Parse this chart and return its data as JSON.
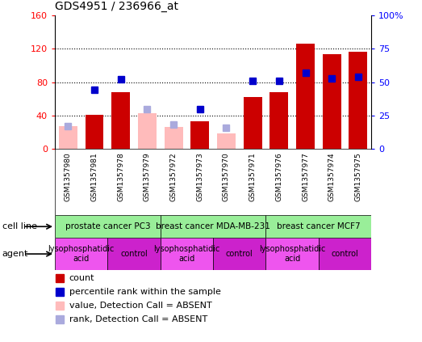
{
  "title": "GDS4951 / 236966_at",
  "samples": [
    "GSM1357980",
    "GSM1357981",
    "GSM1357978",
    "GSM1357979",
    "GSM1357972",
    "GSM1357973",
    "GSM1357970",
    "GSM1357971",
    "GSM1357976",
    "GSM1357977",
    "GSM1357974",
    "GSM1357975"
  ],
  "count_present": [
    null,
    41,
    68,
    null,
    null,
    33,
    null,
    62,
    68,
    126,
    113,
    116
  ],
  "count_absent": [
    27,
    null,
    null,
    43,
    26,
    null,
    18,
    null,
    null,
    null,
    null,
    null
  ],
  "rank_present": [
    null,
    44,
    52,
    null,
    null,
    30,
    null,
    51,
    51,
    57,
    53,
    54
  ],
  "rank_absent": [
    17,
    null,
    null,
    30,
    18,
    null,
    16,
    null,
    null,
    null,
    null,
    null
  ],
  "cell_line_groups": [
    {
      "label": "prostate cancer PC3",
      "start": 0,
      "end": 4
    },
    {
      "label": "breast cancer MDA-MB-231",
      "start": 4,
      "end": 8
    },
    {
      "label": "breast cancer MCF7",
      "start": 8,
      "end": 12
    }
  ],
  "cell_line_colors": [
    "#88ee88",
    "#66dd66",
    "#44cc44"
  ],
  "agent_labels": [
    "lysophosphatidic\nacid",
    "control",
    "lysophosphatidic\nacid",
    "control",
    "lysophosphatidic\nacid",
    "control"
  ],
  "agent_ranges": [
    [
      0,
      2
    ],
    [
      2,
      4
    ],
    [
      4,
      6
    ],
    [
      6,
      8
    ],
    [
      8,
      10
    ],
    [
      10,
      12
    ]
  ],
  "agent_colors": [
    "#dd44dd",
    "#bb22bb",
    "#dd44dd",
    "#bb22bb",
    "#dd44dd",
    "#bb22bb"
  ],
  "ylim_left": [
    0,
    160
  ],
  "ylim_right": [
    0,
    100
  ],
  "yticks_left": [
    0,
    40,
    80,
    120,
    160
  ],
  "ytick_labels_left": [
    "0",
    "40",
    "80",
    "120",
    "160"
  ],
  "yticks_right": [
    0,
    25,
    50,
    75,
    100
  ],
  "ytick_labels_right": [
    "0",
    "25",
    "50",
    "75",
    "100%"
  ],
  "color_present_bar": "#cc0000",
  "color_absent_bar": "#ffbbbb",
  "color_present_rank": "#0000cc",
  "color_absent_rank": "#aaaadd",
  "cell_line_bg": "#88ee88",
  "sample_bg": "#cccccc",
  "grid_dotted_color": "#000000"
}
